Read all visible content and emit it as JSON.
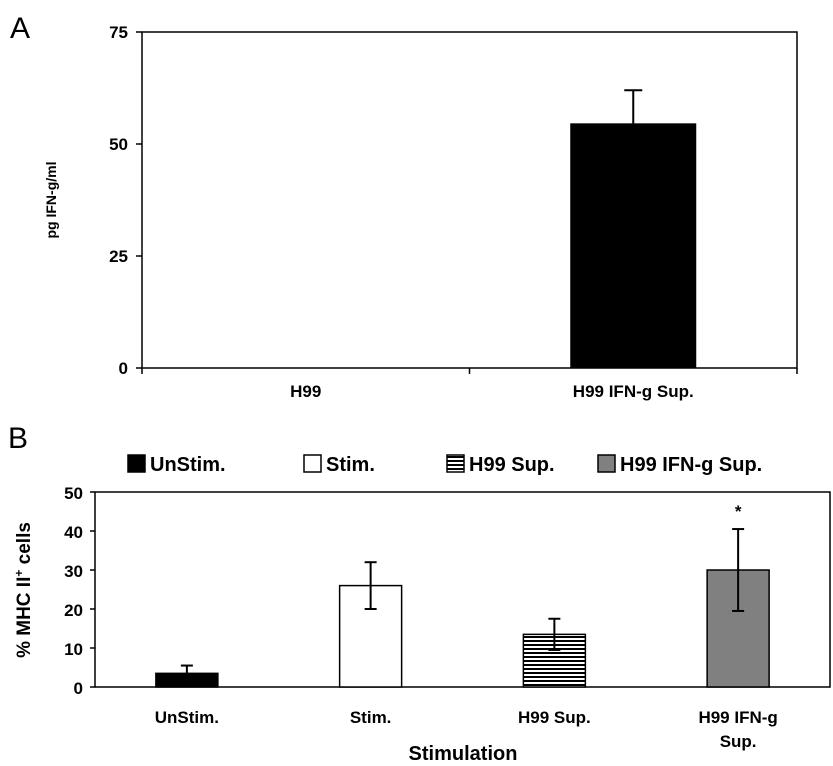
{
  "figure": {
    "panel_a_letter": "A",
    "panel_b_letter": "B"
  },
  "chart_data": [
    {
      "type": "bar",
      "panel": "A",
      "title": "",
      "xlabel": "",
      "ylabel": "pg IFN-g/ml",
      "ylim": [
        0,
        75
      ],
      "yticks": [
        "0",
        "25",
        "50",
        "75"
      ],
      "categories": [
        "H99",
        "H99 IFN-g Sup."
      ],
      "series": [
        {
          "values": [
            0,
            54.5
          ],
          "errors": [
            0,
            7.5
          ],
          "color": "#000000"
        }
      ],
      "grid": false
    },
    {
      "type": "bar",
      "panel": "B",
      "title": "",
      "xlabel": "Stimulation",
      "ylabel_main": "% MHC II",
      "ylabel_sup": "+",
      "ylabel_tail": " cells",
      "ylim": [
        0,
        50
      ],
      "yticks": [
        "0",
        "10",
        "20",
        "30",
        "40",
        "50"
      ],
      "categories": [
        "UnStim.",
        "Stim.",
        "H99 Sup.",
        "H99 IFN-g Sup."
      ],
      "category_lines": [
        [
          "UnStim."
        ],
        [
          "Stim."
        ],
        [
          "H99 Sup."
        ],
        [
          "H99 IFN-g",
          "Sup."
        ]
      ],
      "values": [
        3.5,
        26,
        13.5,
        30
      ],
      "errors": [
        2,
        6,
        4,
        10.5
      ],
      "fills": [
        "#000000",
        "#ffffff",
        "stripes",
        "#808080"
      ],
      "legend": [
        "UnStim.",
        "Stim.",
        "H99 Sup.",
        "H99 IFN-g Sup."
      ],
      "legend_position": "top",
      "annotations": [
        {
          "category": "H99 IFN-g Sup.",
          "text": "*"
        }
      ],
      "grid": false
    }
  ]
}
